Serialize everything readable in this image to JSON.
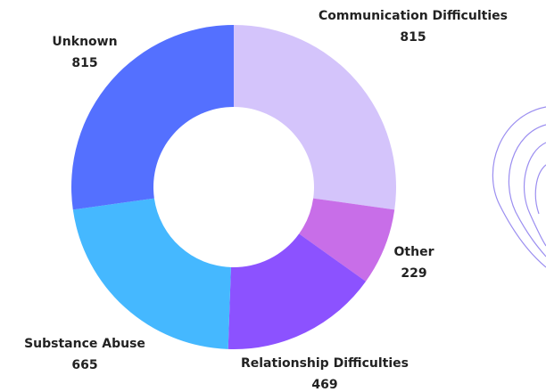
{
  "chart_data": {
    "type": "donut",
    "categories": [
      "Communication Difficulties",
      "Other",
      "Relationship Difficulties",
      "Substance Abuse",
      "Unknown"
    ],
    "values": [
      815,
      229,
      469,
      665,
      815
    ],
    "colors": [
      "#d4c4fb",
      "#c86ee8",
      "#8c52ff",
      "#45b8ff",
      "#5470ff"
    ]
  }
}
